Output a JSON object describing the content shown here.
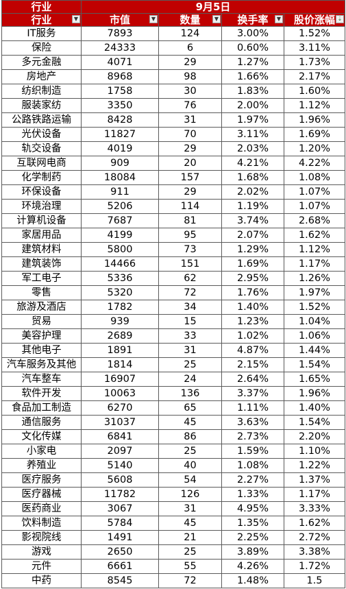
{
  "header": {
    "industry_label": "行业",
    "date_label": "9月5日",
    "columns": [
      "行业",
      "市值",
      "数量",
      "换手率",
      "股价涨幅"
    ]
  },
  "rows": [
    {
      "industry": "IT服务",
      "market_cap": "7893",
      "count": "124",
      "turnover": "3.00%",
      "change": "1.52%"
    },
    {
      "industry": "保险",
      "market_cap": "24333",
      "count": "6",
      "turnover": "0.60%",
      "change": "3.11%"
    },
    {
      "industry": "多元金融",
      "market_cap": "4071",
      "count": "29",
      "turnover": "1.27%",
      "change": "1.73%"
    },
    {
      "industry": "房地产",
      "market_cap": "8968",
      "count": "98",
      "turnover": "1.66%",
      "change": "2.17%"
    },
    {
      "industry": "纺织制造",
      "market_cap": "1758",
      "count": "30",
      "turnover": "1.83%",
      "change": "1.60%"
    },
    {
      "industry": "服装家纺",
      "market_cap": "3350",
      "count": "76",
      "turnover": "2.00%",
      "change": "1.12%"
    },
    {
      "industry": "公路铁路运输",
      "market_cap": "8428",
      "count": "31",
      "turnover": "1.97%",
      "change": "1.96%"
    },
    {
      "industry": "光伏设备",
      "market_cap": "11827",
      "count": "70",
      "turnover": "3.11%",
      "change": "1.69%"
    },
    {
      "industry": "轨交设备",
      "market_cap": "4019",
      "count": "29",
      "turnover": "2.03%",
      "change": "1.20%"
    },
    {
      "industry": "互联网电商",
      "market_cap": "909",
      "count": "20",
      "turnover": "4.21%",
      "change": "4.22%"
    },
    {
      "industry": "化学制药",
      "market_cap": "18084",
      "count": "157",
      "turnover": "1.68%",
      "change": "1.08%"
    },
    {
      "industry": "环保设备",
      "market_cap": "911",
      "count": "29",
      "turnover": "2.02%",
      "change": "1.07%"
    },
    {
      "industry": "环境治理",
      "market_cap": "5206",
      "count": "114",
      "turnover": "1.19%",
      "change": "1.07%"
    },
    {
      "industry": "计算机设备",
      "market_cap": "7687",
      "count": "81",
      "turnover": "3.74%",
      "change": "2.68%"
    },
    {
      "industry": "家居用品",
      "market_cap": "4199",
      "count": "95",
      "turnover": "2.07%",
      "change": "1.62%"
    },
    {
      "industry": "建筑材料",
      "market_cap": "5800",
      "count": "73",
      "turnover": "1.29%",
      "change": "1.12%"
    },
    {
      "industry": "建筑装饰",
      "market_cap": "14466",
      "count": "151",
      "turnover": "1.69%",
      "change": "1.17%"
    },
    {
      "industry": "军工电子",
      "market_cap": "5336",
      "count": "62",
      "turnover": "2.95%",
      "change": "1.26%"
    },
    {
      "industry": "零售",
      "market_cap": "5320",
      "count": "72",
      "turnover": "1.76%",
      "change": "1.97%"
    },
    {
      "industry": "旅游及酒店",
      "market_cap": "1782",
      "count": "34",
      "turnover": "1.40%",
      "change": "1.52%"
    },
    {
      "industry": "贸易",
      "market_cap": "939",
      "count": "15",
      "turnover": "1.23%",
      "change": "1.04%"
    },
    {
      "industry": "美容护理",
      "market_cap": "2689",
      "count": "33",
      "turnover": "1.02%",
      "change": "1.06%"
    },
    {
      "industry": "其他电子",
      "market_cap": "1891",
      "count": "31",
      "turnover": "4.87%",
      "change": "1.44%"
    },
    {
      "industry": "汽车服务及其他",
      "market_cap": "1814",
      "count": "25",
      "turnover": "2.15%",
      "change": "1.54%"
    },
    {
      "industry": "汽车整车",
      "market_cap": "16907",
      "count": "24",
      "turnover": "2.64%",
      "change": "1.65%"
    },
    {
      "industry": "软件开发",
      "market_cap": "10063",
      "count": "136",
      "turnover": "3.37%",
      "change": "1.96%"
    },
    {
      "industry": "食品加工制造",
      "market_cap": "6270",
      "count": "65",
      "turnover": "1.11%",
      "change": "1.40%"
    },
    {
      "industry": "通信服务",
      "market_cap": "31037",
      "count": "45",
      "turnover": "3.63%",
      "change": "1.54%"
    },
    {
      "industry": "文化传媒",
      "market_cap": "6841",
      "count": "86",
      "turnover": "2.73%",
      "change": "2.20%"
    },
    {
      "industry": "小家电",
      "market_cap": "2097",
      "count": "25",
      "turnover": "1.59%",
      "change": "1.10%"
    },
    {
      "industry": "养殖业",
      "market_cap": "5140",
      "count": "40",
      "turnover": "1.08%",
      "change": "1.22%"
    },
    {
      "industry": "医疗服务",
      "market_cap": "5608",
      "count": "54",
      "turnover": "2.27%",
      "change": "1.37%"
    },
    {
      "industry": "医疗器械",
      "market_cap": "11782",
      "count": "126",
      "turnover": "1.33%",
      "change": "1.17%"
    },
    {
      "industry": "医药商业",
      "market_cap": "3067",
      "count": "31",
      "turnover": "4.95%",
      "change": "3.33%"
    },
    {
      "industry": "饮料制造",
      "market_cap": "5784",
      "count": "45",
      "turnover": "1.35%",
      "change": "1.62%"
    },
    {
      "industry": "影视院线",
      "market_cap": "1491",
      "count": "21",
      "turnover": "2.25%",
      "change": "2.72%"
    },
    {
      "industry": "游戏",
      "market_cap": "2650",
      "count": "25",
      "turnover": "3.89%",
      "change": "3.38%"
    },
    {
      "industry": "元件",
      "market_cap": "6661",
      "count": "55",
      "turnover": "4.26%",
      "change": "1.72%"
    },
    {
      "industry": "中药",
      "market_cap": "8545",
      "count": "72",
      "turnover": "1.48%",
      "change": "1.5"
    }
  ],
  "filter_icons": [
    "dropdown-filter-icon",
    "sort-filter-icon"
  ],
  "colors": {
    "header_bg": "#c00000",
    "header_text": "#ffffff",
    "grid": "#5a5a5a"
  }
}
